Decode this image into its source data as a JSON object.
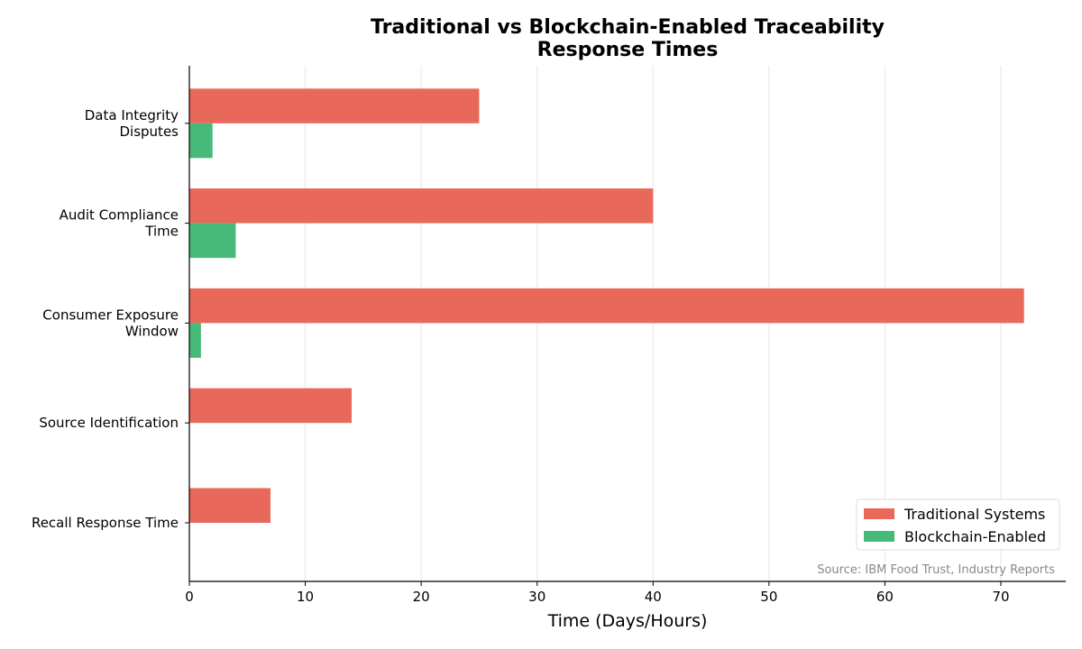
{
  "chart_data": {
    "type": "bar",
    "orientation": "horizontal",
    "title": "Traditional vs Blockchain-Enabled Traceability Response Times",
    "title_lines": [
      "Traditional vs Blockchain-Enabled Traceability",
      "Response Times"
    ],
    "xlabel": "Time (Days/Hours)",
    "ylabel": "",
    "categories": [
      "Recall Response Time",
      "Source Identification",
      "Consumer Exposure Window",
      "Audit Compliance Time",
      "Data Integrity Disputes"
    ],
    "category_lines": [
      [
        "Recall Response Time"
      ],
      [
        "Source Identification"
      ],
      [
        "Consumer Exposure",
        "Window"
      ],
      [
        "Audit Compliance",
        "Time"
      ],
      [
        "Data Integrity",
        "Disputes"
      ]
    ],
    "series": [
      {
        "name": "Traditional Systems",
        "color": "#e8685a",
        "values": [
          7,
          14,
          72,
          40,
          25
        ]
      },
      {
        "name": "Blockchain-Enabled",
        "color": "#47b978",
        "values": [
          0,
          0,
          1,
          4,
          2
        ]
      }
    ],
    "xlim": [
      0,
      75.6
    ],
    "xticks": [
      0,
      10,
      20,
      30,
      40,
      50,
      60,
      70
    ],
    "grid": "vertical",
    "legend": "bottom-right",
    "annotation": "Source: IBM Food Trust, Industry Reports"
  }
}
